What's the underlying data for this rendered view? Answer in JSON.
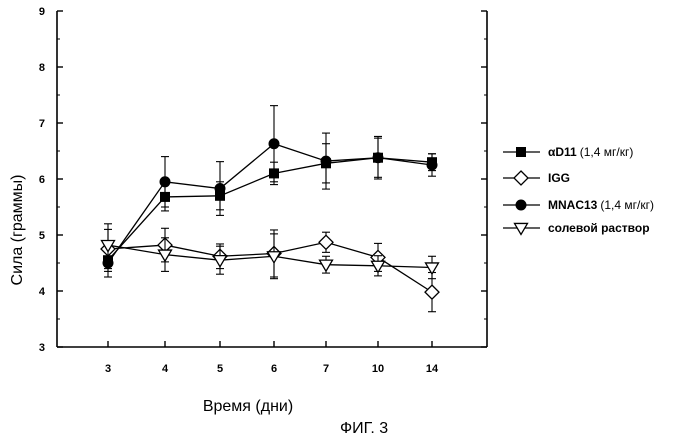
{
  "chart_data": {
    "type": "line",
    "xlabel": "Время (дни)",
    "ylabel": "Сила (граммы)",
    "categories": [
      "3",
      "4",
      "5",
      "6",
      "7",
      "10",
      "14"
    ],
    "ylim": [
      3,
      9
    ],
    "yticks": [
      "3",
      "4",
      "5",
      "6",
      "7",
      "8",
      "9"
    ],
    "grid": false,
    "legend_position": "right",
    "series": [
      {
        "name": "αD11",
        "name_note": "(1,4 мг/кг)",
        "marker": "square-filled",
        "values": [
          4.55,
          5.68,
          5.7,
          6.1,
          6.28,
          6.38,
          6.3
        ],
        "errors": [
          0.2,
          0.25,
          0.25,
          0.2,
          0.35,
          0.35,
          0.15
        ]
      },
      {
        "name": "IGG",
        "name_note": "",
        "marker": "diamond-open",
        "values": [
          4.75,
          4.82,
          4.62,
          4.67,
          4.87,
          4.6,
          3.98
        ],
        "errors": [
          0.35,
          0.3,
          0.22,
          0.42,
          0.18,
          0.25,
          0.35
        ]
      },
      {
        "name": "MNAC13",
        "name_note": "(1,4 мг/кг)",
        "marker": "circle-filled",
        "values": [
          4.5,
          5.95,
          5.83,
          6.63,
          6.32,
          6.38,
          6.25
        ],
        "errors": [
          0.25,
          0.45,
          0.48,
          0.68,
          0.5,
          0.38,
          0.2
        ]
      },
      {
        "name": "солевой раствор",
        "name_note": "",
        "marker": "triangle-down-open",
        "values": [
          4.82,
          4.65,
          4.55,
          4.62,
          4.47,
          4.45,
          4.42
        ],
        "errors": [
          0.38,
          0.3,
          0.25,
          0.4,
          0.15,
          0.18,
          0.2
        ]
      }
    ]
  },
  "caption": "ФИГ. 3"
}
